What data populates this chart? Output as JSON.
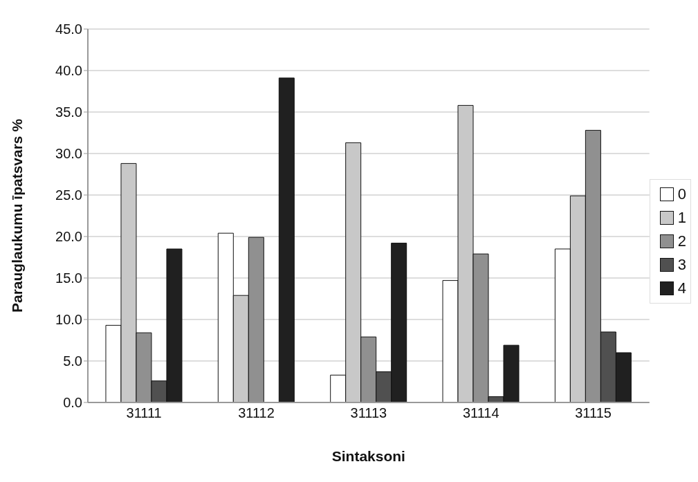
{
  "chart_data": {
    "type": "bar",
    "xlabel": "Sintaksoni",
    "ylabel": "Parauglaukumu īpatsvars %",
    "categories": [
      "31111",
      "31112",
      "31113",
      "31114",
      "31115"
    ],
    "series": [
      {
        "name": "0",
        "color": "#ffffff",
        "values": [
          9.3,
          20.4,
          3.3,
          14.7,
          18.5
        ]
      },
      {
        "name": "1",
        "color": "#c8c8c8",
        "values": [
          28.8,
          12.9,
          31.3,
          35.8,
          24.9
        ]
      },
      {
        "name": "2",
        "color": "#909090",
        "values": [
          8.4,
          19.9,
          7.9,
          17.9,
          32.8
        ]
      },
      {
        "name": "3",
        "color": "#505050",
        "values": [
          2.6,
          0,
          3.7,
          0.7,
          8.5
        ]
      },
      {
        "name": "4",
        "color": "#202020",
        "values": [
          18.5,
          39.1,
          19.2,
          6.9,
          6.0
        ]
      }
    ],
    "ylim": [
      0,
      45
    ],
    "yticks": [
      {
        "value": 0,
        "label": "0.0"
      },
      {
        "value": 5,
        "label": "5.0"
      },
      {
        "value": 10,
        "label": "10.0"
      },
      {
        "value": 15,
        "label": "15.0"
      },
      {
        "value": 20,
        "label": "20.0"
      },
      {
        "value": 25,
        "label": "25.0"
      },
      {
        "value": 30,
        "label": "30.0"
      },
      {
        "value": 35,
        "label": "35.0"
      },
      {
        "value": 40,
        "label": "40.0"
      },
      {
        "value": 45,
        "label": "45.0"
      }
    ],
    "grid": "y",
    "legend": "right"
  }
}
